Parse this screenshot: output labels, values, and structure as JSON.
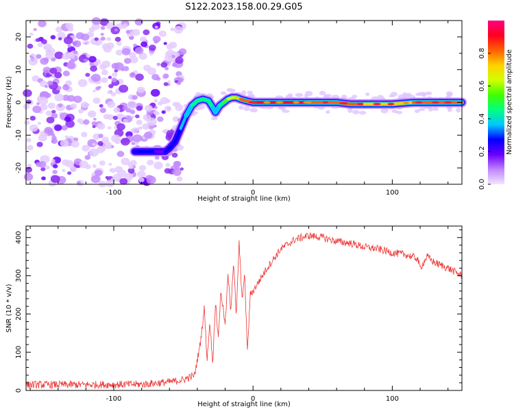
{
  "title": "S122.2023.158.00.29.G05",
  "chart_data": [
    {
      "type": "heatmap",
      "xlabel": "Height of straight line (km)",
      "ylabel": "Frequency (Hz)",
      "xlim": [
        -163,
        150
      ],
      "ylim": [
        -25,
        25
      ],
      "x_ticks": [
        -100,
        0,
        100
      ],
      "y_ticks": [
        -20,
        -10,
        0,
        10,
        20
      ],
      "colorbar": {
        "label": "Normalized spectral amplitude",
        "range": [
          0,
          1
        ],
        "ticks": [
          0.0,
          0.2,
          0.4,
          0.6,
          0.8
        ],
        "tick_labels": [
          "0.0",
          "0.2",
          "0.4",
          "0.6",
          "0.8"
        ],
        "colors": [
          "#f2e6ff",
          "#c084ff",
          "#6a00ff",
          "#0000ff",
          "#00c8ff",
          "#00ff80",
          "#40ff00",
          "#d0ff00",
          "#ffd000",
          "#ff6000",
          "#ff0020",
          "#ff0080"
        ]
      },
      "noise_region_x": [
        -163,
        -50
      ],
      "trace": {
        "x": [
          -85,
          -70,
          -63,
          -60,
          -56,
          -52,
          -48,
          -44,
          -40,
          -36,
          -32,
          -29,
          -27,
          -24,
          -21,
          -18,
          -15,
          -12,
          -9,
          -5,
          0,
          10,
          20,
          40,
          60,
          70,
          80,
          100,
          115,
          130,
          145,
          150
        ],
        "freq": [
          -15,
          -15,
          -15,
          -14,
          -12,
          -8,
          -4,
          -1,
          0.5,
          1,
          0.5,
          -1.5,
          -3,
          -1,
          0,
          1,
          1.5,
          1.5,
          1,
          0.5,
          0,
          0,
          0,
          0,
          0,
          -0.5,
          -0.5,
          -0.5,
          0,
          0,
          0,
          0
        ],
        "amplitude": [
          0.3,
          0.25,
          0.2,
          0.3,
          0.3,
          0.3,
          0.35,
          0.4,
          0.45,
          0.45,
          0.45,
          0.4,
          0.35,
          0.4,
          0.5,
          0.6,
          0.65,
          0.7,
          0.75,
          0.8,
          0.9,
          0.95,
          0.9,
          0.85,
          0.8,
          0.8,
          0.75,
          0.7,
          0.75,
          0.8,
          0.85,
          0.85
        ]
      }
    },
    {
      "type": "line",
      "xlabel": "Height of straight line (km)",
      "ylabel": "SNR (10 * v/v)",
      "xlim": [
        -163,
        150
      ],
      "ylim": [
        0,
        430
      ],
      "x_ticks": [
        -100,
        0,
        100
      ],
      "y_ticks": [
        0,
        100,
        200,
        300,
        400
      ],
      "series": [
        {
          "color": "#ee3333",
          "x": [
            -163,
            -120,
            -80,
            -60,
            -50,
            -42,
            -38,
            -35,
            -33,
            -31,
            -29,
            -27,
            -25,
            -23,
            -20,
            -18,
            -16,
            -14,
            -12,
            -10,
            -8,
            -6,
            -4,
            -2,
            0,
            5,
            10,
            20,
            30,
            40,
            50,
            60,
            70,
            80,
            90,
            100,
            110,
            118,
            120,
            125,
            130,
            140,
            150
          ],
          "y": [
            15,
            15,
            16,
            22,
            28,
            40,
            120,
            215,
            80,
            180,
            70,
            230,
            140,
            260,
            170,
            300,
            210,
            340,
            190,
            390,
            240,
            300,
            100,
            250,
            260,
            290,
            320,
            370,
            395,
            405,
            400,
            390,
            385,
            375,
            370,
            360,
            355,
            345,
            320,
            350,
            335,
            320,
            300
          ],
          "noise": 10
        }
      ]
    }
  ]
}
